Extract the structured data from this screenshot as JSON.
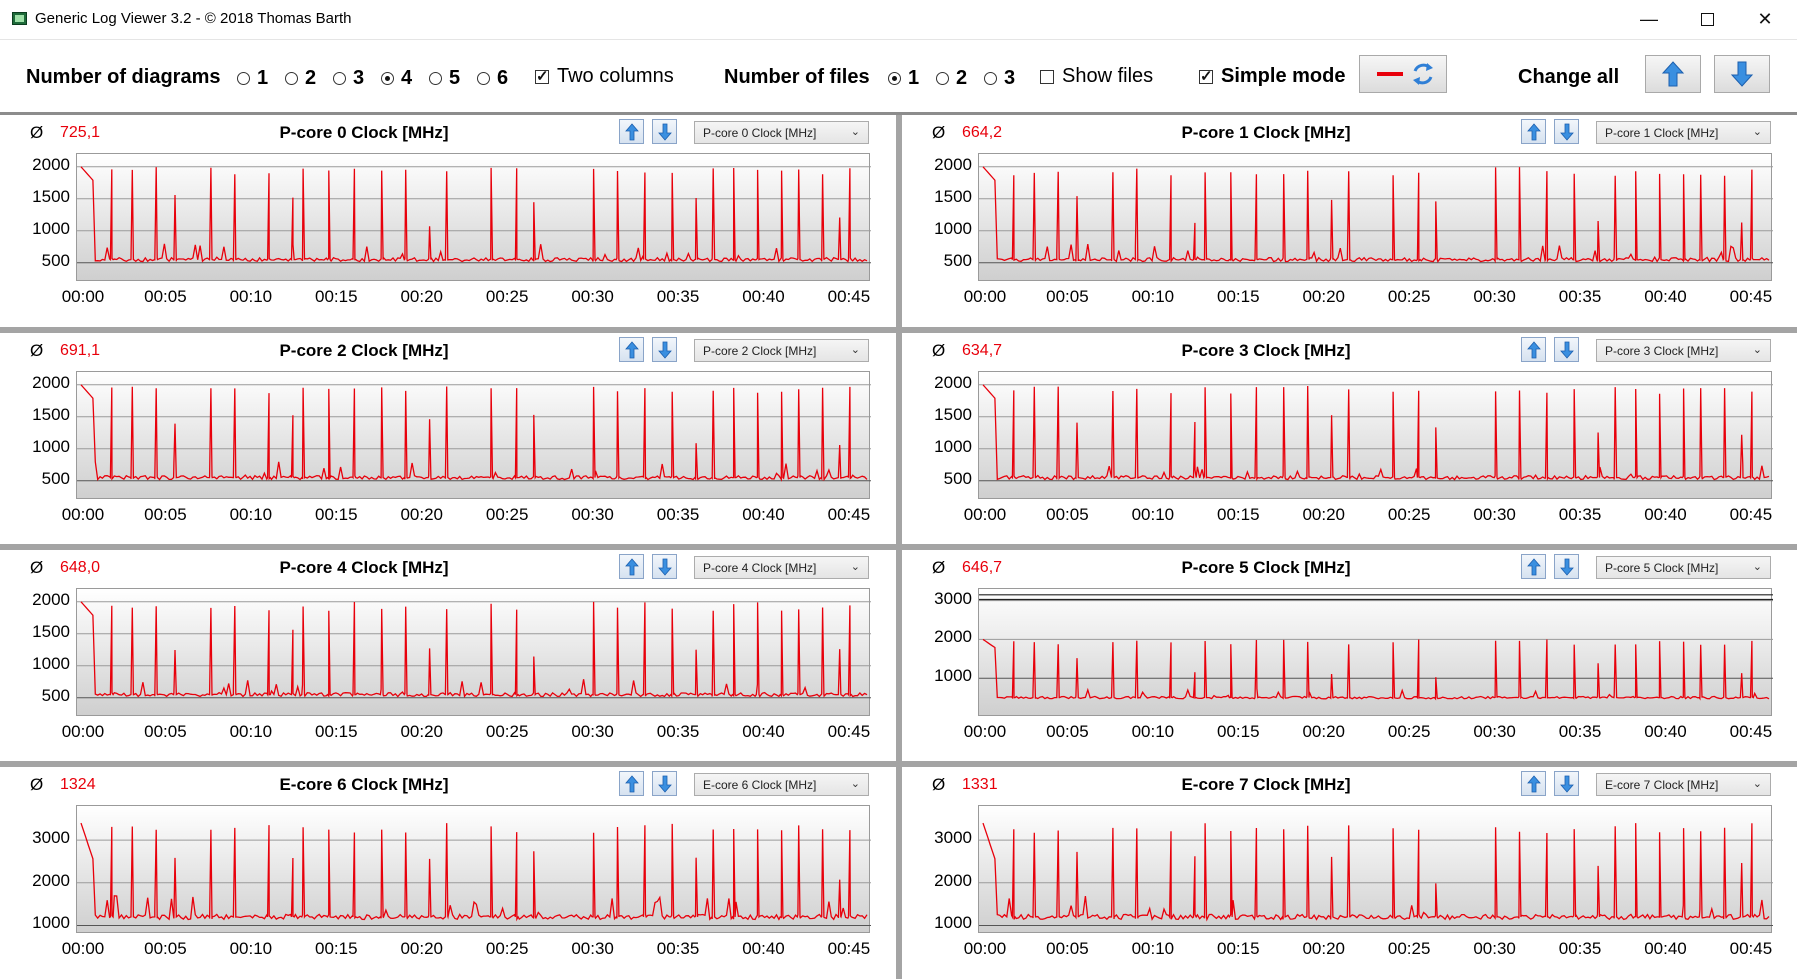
{
  "window": {
    "title": "Generic Log Viewer 3.2 - © 2018 Thomas Barth",
    "minimize_icon": "minimize-icon",
    "maximize_icon": "maximize-icon",
    "close_icon": "close-icon"
  },
  "toolbar": {
    "diagrams_label": "Number of diagrams",
    "diagram_options": [
      "1",
      "2",
      "3",
      "4",
      "5",
      "6"
    ],
    "diagrams_selected": "4",
    "two_columns_label": "Two columns",
    "two_columns_checked": true,
    "files_label": "Number of files",
    "file_options": [
      "1",
      "2",
      "3"
    ],
    "files_selected": "1",
    "show_files_label": "Show files",
    "show_files_checked": false,
    "simple_mode_label": "Simple mode",
    "simple_mode_checked": true,
    "change_all_label": "Change all",
    "line_color": "#e8000b"
  },
  "avg_symbol": "Ø",
  "x_ticks": [
    "00:00",
    "00:05",
    "00:10",
    "00:15",
    "00:20",
    "00:25",
    "00:30",
    "00:35",
    "00:40",
    "00:45"
  ],
  "panels": [
    {
      "title": "P-core 0 Clock [MHz]",
      "avg": "725,1",
      "select": "P-core 0 Clock [MHz]",
      "yticks": [
        "2000",
        "1500",
        "1000",
        "500"
      ]
    },
    {
      "title": "P-core 1 Clock [MHz]",
      "avg": "664,2",
      "select": "P-core 1 Clock [MHz]",
      "yticks": [
        "2000",
        "1500",
        "1000",
        "500"
      ]
    },
    {
      "title": "P-core 2 Clock [MHz]",
      "avg": "691,1",
      "select": "P-core 2 Clock [MHz]",
      "yticks": [
        "2000",
        "1500",
        "1000",
        "500"
      ]
    },
    {
      "title": "P-core 3 Clock [MHz]",
      "avg": "634,7",
      "select": "P-core 3 Clock [MHz]",
      "yticks": [
        "2000",
        "1500",
        "1000",
        "500"
      ]
    },
    {
      "title": "P-core 4 Clock [MHz]",
      "avg": "648,0",
      "select": "P-core 4 Clock [MHz]",
      "yticks": [
        "2000",
        "1500",
        "1000",
        "500"
      ]
    },
    {
      "title": "P-core 5 Clock [MHz]",
      "avg": "646,7",
      "select": "P-core 5 Clock [MHz]",
      "yticks": [
        "3000",
        "2000",
        "1000"
      ]
    },
    {
      "title": "E-core 6 Clock [MHz]",
      "avg": "1324",
      "select": "E-core 6 Clock [MHz]",
      "yticks": [
        "3000",
        "2000",
        "1000"
      ]
    },
    {
      "title": "E-core 7 Clock [MHz]",
      "avg": "1331",
      "select": "E-core 7 Clock [MHz]",
      "yticks": [
        "3000",
        "2000",
        "1000"
      ]
    }
  ],
  "chart_data": [
    {
      "type": "line",
      "title": "P-core 0 Clock [MHz]",
      "xlabel": "",
      "ylabel": "",
      "xlim": [
        0,
        46
      ],
      "ylim": [
        200,
        2200
      ],
      "grid": true,
      "x": [
        0,
        2,
        4,
        7,
        9,
        11,
        14,
        17,
        20,
        22,
        25,
        28,
        31,
        34,
        37,
        39,
        41,
        43,
        45
      ],
      "y": [
        2000,
        550,
        550,
        600,
        550,
        2000,
        600,
        550,
        600,
        550,
        550,
        600,
        2000,
        550,
        600,
        2000,
        550,
        2000,
        600
      ],
      "series": [
        {
          "values": [
            2000,
            550,
            550,
            600,
            550,
            2000,
            600,
            550,
            600,
            550,
            550,
            600,
            2000,
            550,
            600,
            2000,
            550,
            2000,
            600
          ]
        }
      ]
    },
    {
      "type": "line",
      "title": "P-core 1 Clock [MHz]",
      "xlabel": "",
      "ylabel": "",
      "xlim": [
        0,
        46
      ],
      "ylim": [
        200,
        2200
      ],
      "grid": true,
      "x": [
        0,
        2,
        5,
        10,
        15,
        20,
        25,
        30,
        35,
        40,
        45
      ],
      "y": [
        2000,
        550,
        550,
        550,
        550,
        550,
        550,
        550,
        550,
        550,
        550
      ],
      "series": [
        {
          "values": [
            2000,
            550,
            550,
            550,
            550,
            550,
            550,
            550,
            550,
            550,
            550
          ]
        }
      ]
    },
    {
      "type": "line",
      "title": "P-core 2 Clock [MHz]",
      "xlabel": "",
      "ylabel": "",
      "xlim": [
        0,
        46
      ],
      "ylim": [
        200,
        2200
      ],
      "grid": true,
      "x": [
        0,
        2,
        5,
        10,
        15,
        20,
        25,
        30,
        35,
        40,
        45
      ],
      "y": [
        2000,
        550,
        600,
        550,
        550,
        550,
        550,
        550,
        550,
        550,
        550
      ],
      "series": [
        {
          "values": [
            2000,
            550,
            600,
            550,
            550,
            550,
            550,
            550,
            550,
            550,
            550
          ]
        }
      ]
    },
    {
      "type": "line",
      "title": "P-core 3 Clock [MHz]",
      "xlabel": "",
      "ylabel": "",
      "xlim": [
        0,
        46
      ],
      "ylim": [
        200,
        2200
      ],
      "grid": true,
      "x": [
        0,
        2,
        5,
        10,
        15,
        20,
        25,
        30,
        35,
        40,
        45
      ],
      "y": [
        2000,
        500,
        500,
        500,
        500,
        500,
        500,
        500,
        500,
        500,
        500
      ],
      "series": [
        {
          "values": [
            2000,
            500,
            500,
            500,
            500,
            500,
            500,
            500,
            500,
            500,
            500
          ]
        }
      ]
    },
    {
      "type": "line",
      "title": "P-core 4 Clock [MHz]",
      "xlabel": "",
      "ylabel": "",
      "xlim": [
        0,
        46
      ],
      "ylim": [
        200,
        2200
      ],
      "grid": true,
      "x": [
        0,
        2,
        5,
        10,
        15,
        20,
        25,
        30,
        35,
        40,
        45
      ],
      "y": [
        2000,
        500,
        500,
        500,
        500,
        500,
        500,
        500,
        500,
        500,
        500
      ],
      "series": [
        {
          "values": [
            2000,
            500,
            500,
            500,
            500,
            500,
            500,
            500,
            500,
            500,
            500
          ]
        }
      ]
    },
    {
      "type": "line",
      "title": "P-core 5 Clock [MHz]",
      "xlabel": "",
      "ylabel": "",
      "xlim": [
        0,
        46
      ],
      "ylim": [
        0,
        3300
      ],
      "grid": true,
      "x": [
        0,
        2,
        5,
        10,
        15,
        20,
        25,
        30,
        35,
        40,
        45
      ],
      "y": [
        2000,
        500,
        500,
        500,
        500,
        500,
        500,
        500,
        500,
        500,
        500
      ],
      "series": [
        {
          "values": [
            2000,
            500,
            500,
            500,
            500,
            500,
            500,
            500,
            500,
            500,
            500
          ]
        }
      ]
    },
    {
      "type": "line",
      "title": "E-core 6 Clock [MHz]",
      "xlabel": "",
      "ylabel": "",
      "xlim": [
        0,
        46
      ],
      "ylim": [
        800,
        3800
      ],
      "grid": true,
      "x": [
        0,
        2,
        5,
        10,
        15,
        20,
        25,
        30,
        35,
        40,
        45
      ],
      "y": [
        3400,
        1200,
        1200,
        1200,
        1200,
        1200,
        1200,
        1200,
        1200,
        1200,
        1200
      ],
      "series": [
        {
          "values": [
            3400,
            1200,
            1200,
            1200,
            1200,
            1200,
            1200,
            1200,
            1200,
            1200,
            1200
          ]
        }
      ]
    },
    {
      "type": "line",
      "title": "E-core 7 Clock [MHz]",
      "xlabel": "",
      "ylabel": "",
      "xlim": [
        0,
        46
      ],
      "ylim": [
        800,
        3800
      ],
      "grid": true,
      "x": [
        0,
        2,
        5,
        10,
        15,
        20,
        25,
        30,
        35,
        40,
        45
      ],
      "y": [
        3400,
        1200,
        1200,
        1200,
        1200,
        1200,
        1200,
        1200,
        1200,
        1200,
        1200
      ],
      "series": [
        {
          "values": [
            3400,
            1200,
            1200,
            1200,
            1200,
            1200,
            1200,
            1200,
            1200,
            1200,
            1200
          ]
        }
      ]
    }
  ]
}
